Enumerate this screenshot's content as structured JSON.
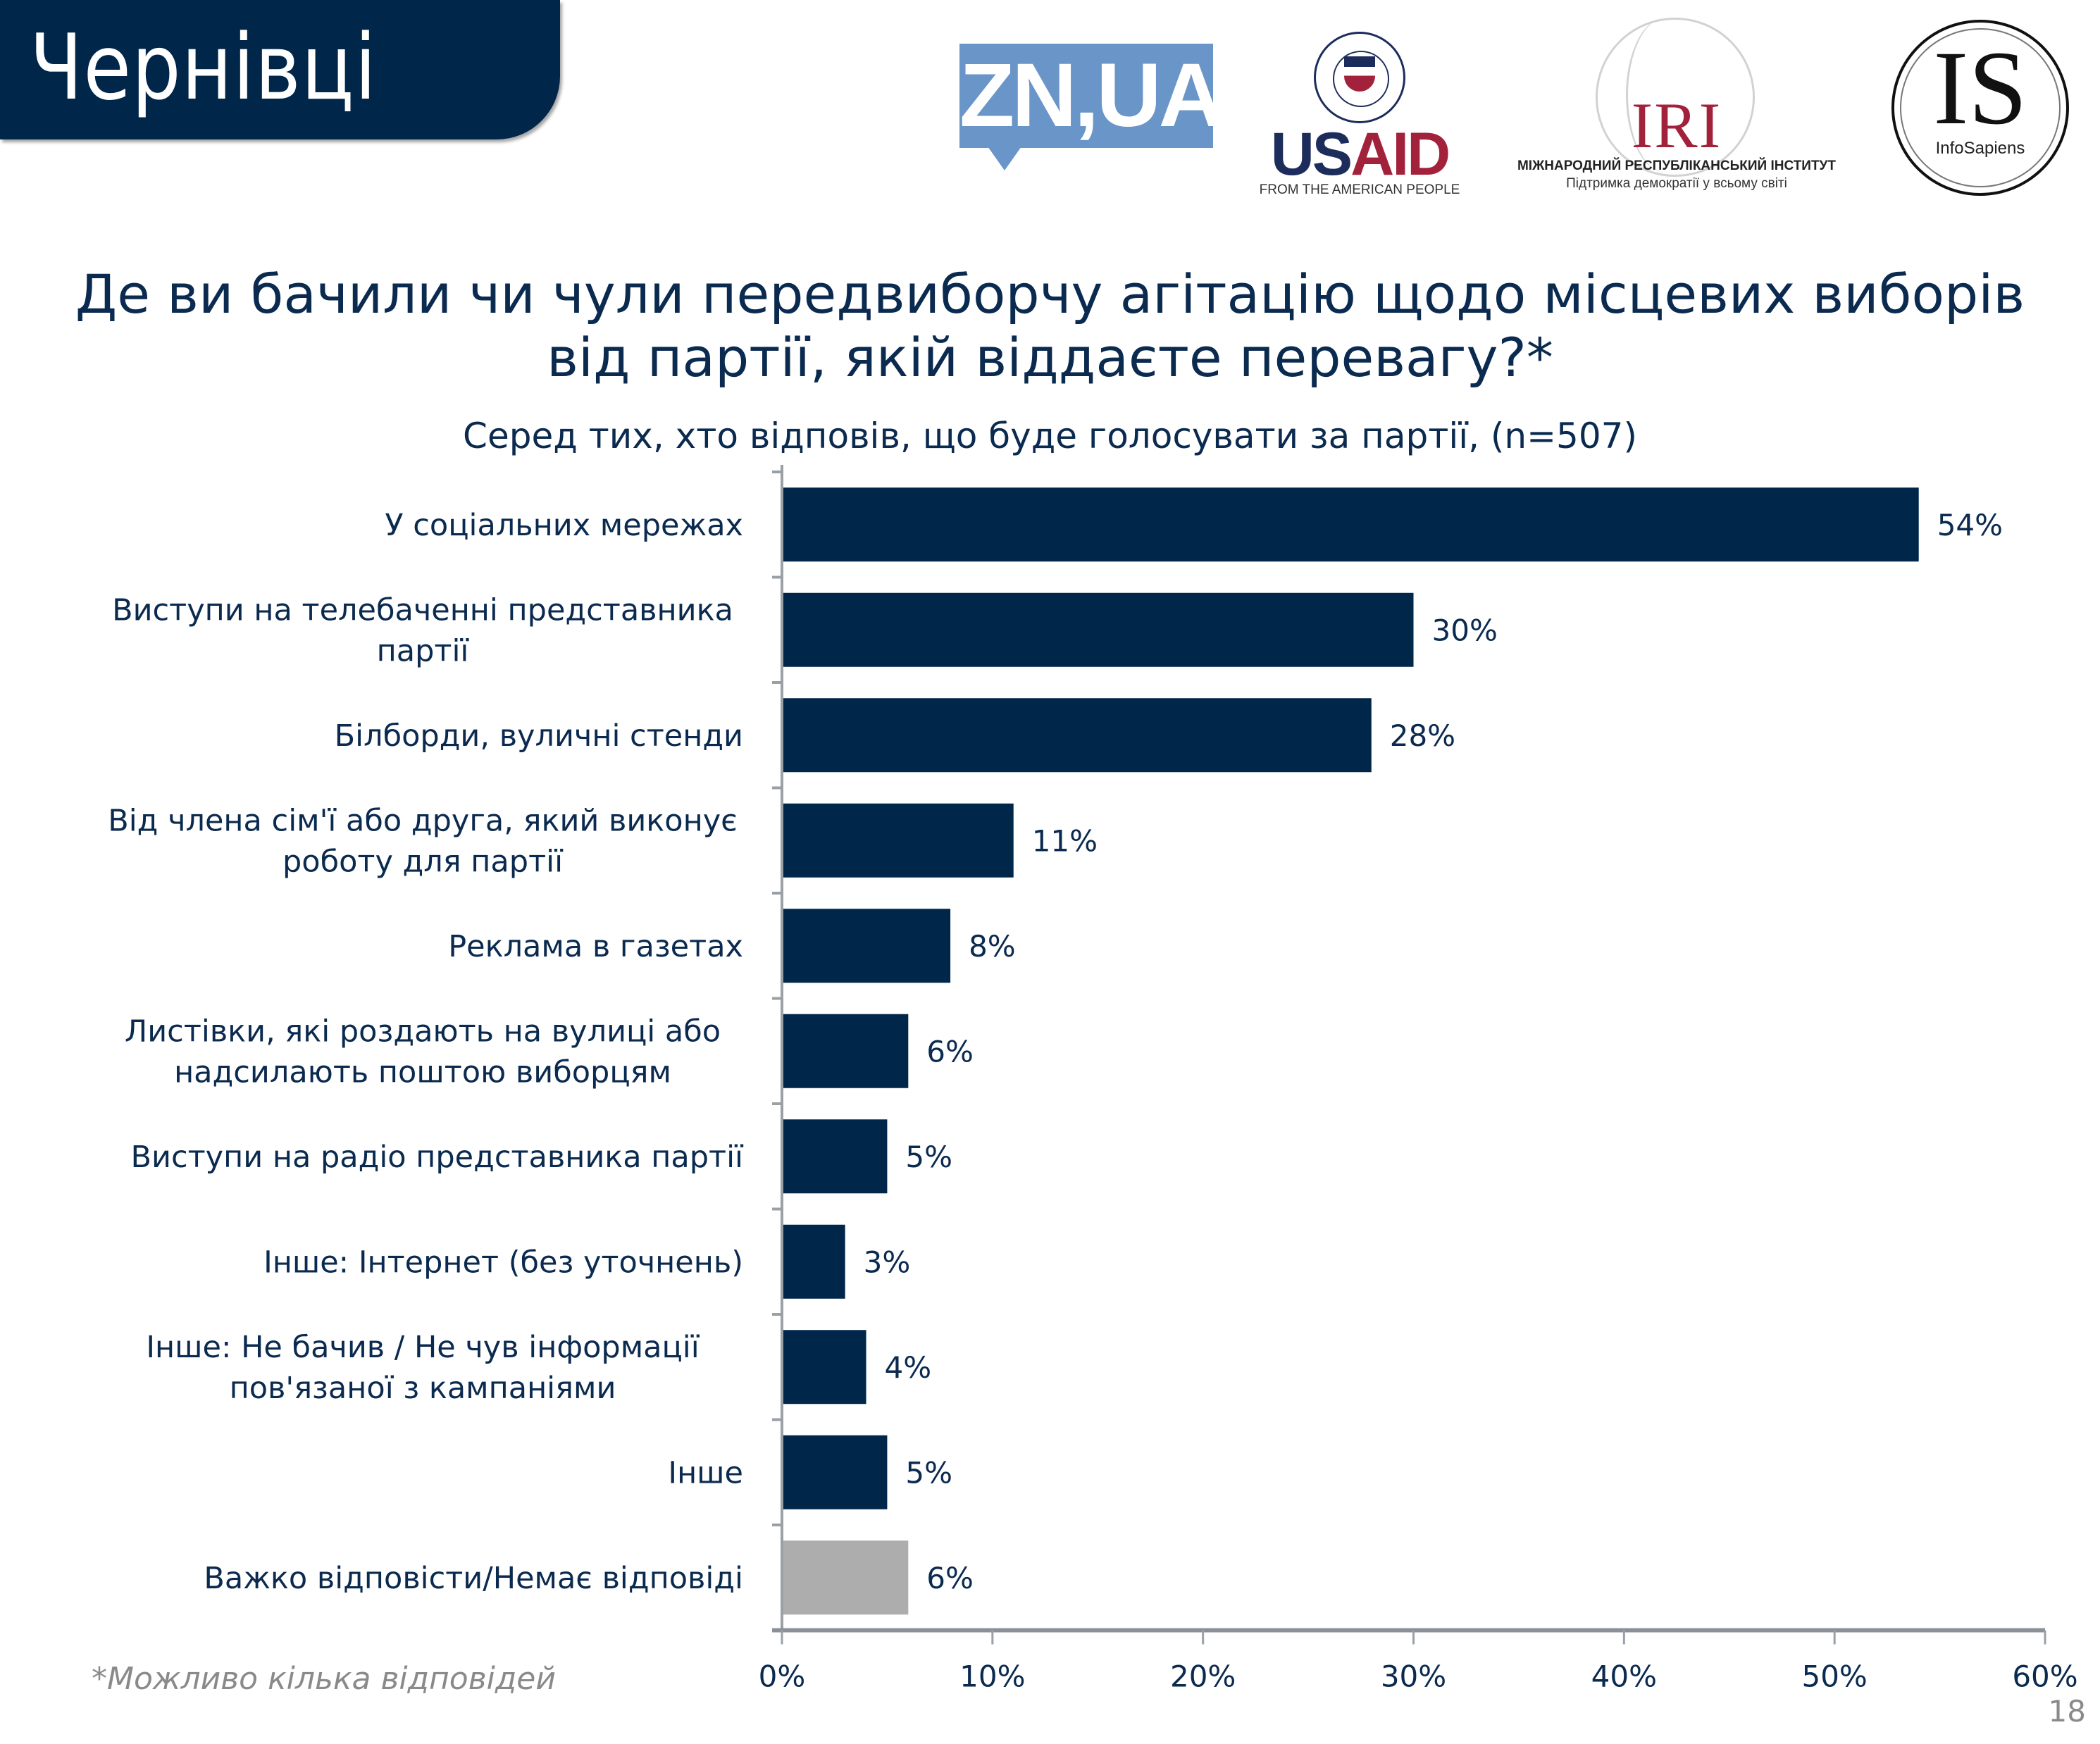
{
  "header": {
    "city": "Чернівці"
  },
  "logos": {
    "zn": "ZN,UA",
    "usaid": {
      "us": "US",
      "aid": "AID",
      "sub": "FROM THE AMERICAN PEOPLE"
    },
    "iri": {
      "mark": "IRI",
      "name": "МІЖНАРОДНИЙ РЕСПУБЛІКАНСЬКИЙ ІНСТИТУТ",
      "tagline": "Підтримка демократії у всьому світі"
    },
    "infosapiens": {
      "mark": "IS",
      "name": "InfoSapiens"
    }
  },
  "title_line1": "Де ви бачили чи чули передвиборчу агітацію щодо місцевих виборів",
  "title_line2": "від партії, якій віддаєте перевагу?*",
  "subtitle": "Серед тих, хто відповів, що буде голосувати за партії, (n=507)",
  "footnote": "*Можливо кілька відповідей",
  "page_number": "18",
  "colors": {
    "primary_bar": "#00264a",
    "neutral_bar": "#adadad",
    "header_bg": "#00264a",
    "text": "#0b2a4f"
  },
  "chart_data": {
    "type": "bar",
    "orientation": "horizontal",
    "title": "Де ви бачили чи чули передвиборчу агітацію щодо місцевих виборів від партії, якій віддаєте перевагу?*",
    "subtitle": "Серед тих, хто відповів, що буде голосувати за партії, (n=507)",
    "xlabel": "",
    "ylabel": "",
    "xlim": [
      0,
      60
    ],
    "xticks": [
      0,
      10,
      20,
      30,
      40,
      50,
      60
    ],
    "xtick_labels": [
      "0%",
      "10%",
      "20%",
      "30%",
      "40%",
      "50%",
      "60%"
    ],
    "grid": false,
    "legend": "none",
    "categories": [
      [
        "У соціальних мережах"
      ],
      [
        "Виступи на телебаченні представника",
        "партії"
      ],
      [
        "Білборди, вуличні стенди"
      ],
      [
        "Від члена сім'ї або друга, який виконує",
        "роботу для партії"
      ],
      [
        "Реклама в газетах"
      ],
      [
        "Листівки, які роздають на вулиці або",
        "надсилають поштою виборцям"
      ],
      [
        "Виступи на радіо представника партії"
      ],
      [
        "Інше: Інтернет (без уточнень)"
      ],
      [
        "Інше: Не бачив / Не чув інформації",
        "пов'язаної з кампаніями"
      ],
      [
        "Інше"
      ],
      [
        "Важко відповісти/Немає відповіді"
      ]
    ],
    "values": [
      54,
      30,
      28,
      11,
      8,
      6,
      5,
      3,
      4,
      5,
      6
    ],
    "value_labels": [
      "54%",
      "30%",
      "28%",
      "11%",
      "8%",
      "6%",
      "5%",
      "3%",
      "4%",
      "5%",
      "6%"
    ],
    "bar_colors": [
      "#00264a",
      "#00264a",
      "#00264a",
      "#00264a",
      "#00264a",
      "#00264a",
      "#00264a",
      "#00264a",
      "#00264a",
      "#00264a",
      "#adadad"
    ]
  }
}
